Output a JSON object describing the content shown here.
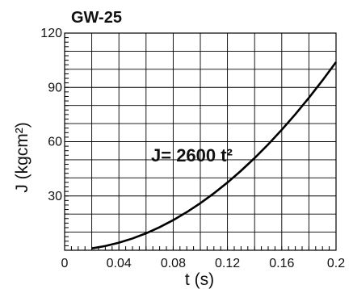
{
  "chart_data": {
    "type": "line",
    "title": "GW-25",
    "xlabel": "t (s)",
    "ylabel": "J (kgcm²)",
    "xlim": [
      0,
      0.2
    ],
    "ylim": [
      0,
      120
    ],
    "xticks": [
      0,
      0.04,
      0.08,
      0.12,
      0.16,
      0.2
    ],
    "xtick_labels": [
      "0",
      "0.04",
      "0.08",
      "0.12",
      "0.16",
      "0.2"
    ],
    "yticks": [
      30,
      60,
      90,
      120
    ],
    "ytick_labels": [
      "30",
      "60",
      "90",
      "120"
    ],
    "grid": true,
    "annotation": "J= 2600 t²",
    "series": [
      {
        "color": "#000000",
        "x": [
          0.02,
          0.03,
          0.04,
          0.05,
          0.06,
          0.07,
          0.08,
          0.09,
          0.1,
          0.11,
          0.12,
          0.13,
          0.14,
          0.15,
          0.16,
          0.17,
          0.18,
          0.19,
          0.2
        ],
        "y": [
          1.04,
          2.34,
          4.16,
          6.5,
          9.36,
          12.74,
          16.64,
          21.06,
          26,
          31.46,
          37.44,
          43.94,
          50.96,
          58.5,
          66.56,
          75.14,
          84.24,
          93.86,
          104
        ]
      }
    ]
  }
}
